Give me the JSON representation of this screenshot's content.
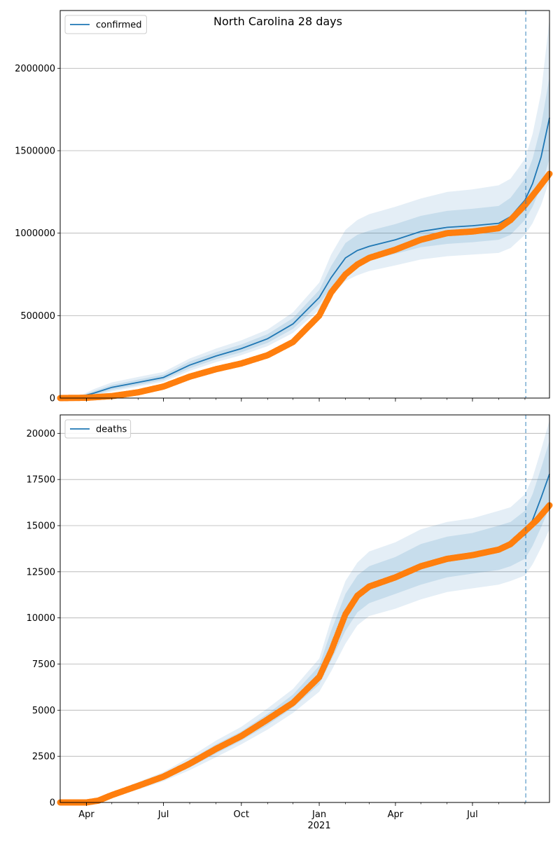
{
  "title": "North Carolina 28 days",
  "colors": {
    "model": "#1f77b4",
    "observed": "#ff7f0e",
    "band": "#1f77b4",
    "grid": "#b0b0b0",
    "forecast_line": "#1f77b4"
  },
  "x_axis": {
    "start": "2020-03-01",
    "end": "2021-09-30",
    "forecast_start": "2021-09-02",
    "ticks": [
      {
        "date": "2020-04-01",
        "label": "Apr"
      },
      {
        "date": "2020-07-01",
        "label": "Jul"
      },
      {
        "date": "2020-10-01",
        "label": "Oct"
      },
      {
        "date": "2021-01-01",
        "label": "Jan"
      },
      {
        "date": "2021-04-01",
        "label": "Apr"
      },
      {
        "date": "2021-07-01",
        "label": "Jul"
      }
    ],
    "year_label": {
      "date": "2021-01-01",
      "label": "2021"
    }
  },
  "chart_data": [
    {
      "type": "line",
      "legend": "confirmed",
      "legend_position": "top-left",
      "grid": "horizontal",
      "ylim": [
        0,
        2350000
      ],
      "yticks": [
        0,
        500000,
        1000000,
        1500000,
        2000000
      ],
      "ytick_labels": [
        "0",
        "500000",
        "1000000",
        "1500000",
        "2000000"
      ],
      "model": {
        "name": "confirmed",
        "x": [
          "2020-03-01",
          "2020-03-20",
          "2020-04-10",
          "2020-05-01",
          "2020-06-01",
          "2020-07-01",
          "2020-08-01",
          "2020-09-01",
          "2020-10-01",
          "2020-11-01",
          "2020-12-01",
          "2021-01-01",
          "2021-01-15",
          "2021-02-01",
          "2021-02-15",
          "2021-03-01",
          "2021-04-01",
          "2021-05-01",
          "2021-06-01",
          "2021-07-01",
          "2021-08-01",
          "2021-08-15",
          "2021-09-01",
          "2021-09-10",
          "2021-09-20",
          "2021-09-30"
        ],
        "y": [
          0,
          2000,
          30000,
          65000,
          95000,
          125000,
          200000,
          255000,
          300000,
          360000,
          450000,
          610000,
          730000,
          850000,
          895000,
          920000,
          960000,
          1010000,
          1035000,
          1045000,
          1060000,
          1100000,
          1200000,
          1300000,
          1460000,
          1700000
        ]
      },
      "band_inner": {
        "lower": [
          0,
          1000,
          18000,
          50000,
          80000,
          110000,
          180000,
          235000,
          278000,
          335000,
          420000,
          570000,
          670000,
          770000,
          810000,
          835000,
          875000,
          915000,
          935000,
          945000,
          960000,
          990000,
          1080000,
          1160000,
          1280000,
          1450000
        ],
        "upper": [
          0,
          3000,
          42000,
          80000,
          112000,
          142000,
          222000,
          278000,
          325000,
          388000,
          485000,
          655000,
          800000,
          940000,
          990000,
          1015000,
          1055000,
          1105000,
          1135000,
          1148000,
          1165000,
          1215000,
          1330000,
          1450000,
          1650000,
          1950000
        ]
      },
      "band_outer": {
        "lower": [
          0,
          500,
          10000,
          40000,
          70000,
          98000,
          165000,
          218000,
          260000,
          315000,
          395000,
          535000,
          620000,
          710000,
          745000,
          770000,
          805000,
          840000,
          860000,
          870000,
          880000,
          910000,
          990000,
          1060000,
          1170000,
          1320000
        ],
        "upper": [
          0,
          4000,
          55000,
          95000,
          128000,
          158000,
          240000,
          300000,
          350000,
          415000,
          520000,
          700000,
          870000,
          1020000,
          1080000,
          1115000,
          1160000,
          1210000,
          1250000,
          1265000,
          1290000,
          1330000,
          1450000,
          1600000,
          1850000,
          2300000
        ]
      },
      "observed": {
        "x": [
          "2020-03-01",
          "2020-04-01",
          "2020-05-01",
          "2020-06-01",
          "2020-07-01",
          "2020-08-01",
          "2020-09-01",
          "2020-10-01",
          "2020-11-01",
          "2020-12-01",
          "2021-01-01",
          "2021-01-15",
          "2021-02-01",
          "2021-02-15",
          "2021-03-01",
          "2021-04-01",
          "2021-05-01",
          "2021-06-01",
          "2021-07-01",
          "2021-08-01",
          "2021-08-15",
          "2021-09-01",
          "2021-09-15",
          "2021-09-30"
        ],
        "y": [
          0,
          2000,
          12000,
          35000,
          70000,
          130000,
          175000,
          210000,
          260000,
          340000,
          500000,
          640000,
          750000,
          810000,
          850000,
          900000,
          960000,
          1000000,
          1010000,
          1030000,
          1080000,
          1170000,
          1260000,
          1360000
        ]
      }
    },
    {
      "type": "line",
      "legend": "deaths",
      "legend_position": "top-left",
      "grid": "horizontal",
      "ylim": [
        0,
        21000
      ],
      "yticks": [
        0,
        2500,
        5000,
        7500,
        10000,
        12500,
        15000,
        17500,
        20000
      ],
      "ytick_labels": [
        "0",
        "2500",
        "5000",
        "7500",
        "10000",
        "12500",
        "15000",
        "17500",
        "20000"
      ],
      "model": {
        "name": "deaths",
        "x": [
          "2020-03-01",
          "2020-04-01",
          "2020-05-01",
          "2020-06-01",
          "2020-07-01",
          "2020-08-01",
          "2020-09-01",
          "2020-10-01",
          "2020-11-01",
          "2020-12-01",
          "2021-01-01",
          "2021-01-15",
          "2021-02-01",
          "2021-02-15",
          "2021-03-01",
          "2021-04-01",
          "2021-05-01",
          "2021-06-01",
          "2021-07-01",
          "2021-08-01",
          "2021-08-15",
          "2021-09-01",
          "2021-09-10",
          "2021-09-20",
          "2021-09-30"
        ],
        "y": [
          0,
          0,
          400,
          900,
          1400,
          2100,
          2900,
          3600,
          4500,
          5500,
          6900,
          8500,
          10300,
          11300,
          11800,
          12300,
          12900,
          13300,
          13500,
          13800,
          14000,
          14500,
          15300,
          16500,
          17800
        ]
      },
      "band_inner": {
        "lower": [
          0,
          0,
          300,
          800,
          1250,
          1900,
          2650,
          3350,
          4200,
          5150,
          6400,
          7700,
          9300,
          10300,
          10800,
          11300,
          11800,
          12200,
          12400,
          12600,
          12800,
          13200,
          13900,
          14900,
          16000
        ],
        "upper": [
          0,
          0,
          500,
          1000,
          1550,
          2300,
          3150,
          3850,
          4800,
          5850,
          7400,
          9300,
          11300,
          12300,
          12800,
          13300,
          14000,
          14400,
          14600,
          15000,
          15200,
          15800,
          16700,
          18100,
          19600
        ]
      },
      "band_outer": {
        "lower": [
          0,
          0,
          250,
          700,
          1150,
          1750,
          2450,
          3150,
          3950,
          4850,
          6000,
          7100,
          8600,
          9600,
          10100,
          10500,
          11000,
          11400,
          11600,
          11800,
          12000,
          12300,
          12900,
          13800,
          14800
        ],
        "upper": [
          0,
          0,
          550,
          1100,
          1650,
          2450,
          3350,
          4100,
          5100,
          6150,
          7800,
          9900,
          12000,
          13000,
          13600,
          14100,
          14800,
          15200,
          15400,
          15800,
          16000,
          16700,
          17600,
          19100,
          20700
        ]
      },
      "observed": {
        "x": [
          "2020-03-01",
          "2020-04-01",
          "2020-04-15",
          "2020-05-01",
          "2020-06-01",
          "2020-07-01",
          "2020-08-01",
          "2020-09-01",
          "2020-10-01",
          "2020-11-01",
          "2020-12-01",
          "2021-01-01",
          "2021-01-15",
          "2021-02-01",
          "2021-02-15",
          "2021-03-01",
          "2021-04-01",
          "2021-05-01",
          "2021-06-01",
          "2021-07-01",
          "2021-08-01",
          "2021-08-15",
          "2021-09-01",
          "2021-09-15",
          "2021-09-30"
        ],
        "y": [
          0,
          0,
          100,
          400,
          900,
          1400,
          2100,
          2900,
          3600,
          4500,
          5400,
          6800,
          8200,
          10200,
          11200,
          11700,
          12200,
          12800,
          13200,
          13400,
          13700,
          14000,
          14700,
          15300,
          16100
        ]
      }
    }
  ]
}
